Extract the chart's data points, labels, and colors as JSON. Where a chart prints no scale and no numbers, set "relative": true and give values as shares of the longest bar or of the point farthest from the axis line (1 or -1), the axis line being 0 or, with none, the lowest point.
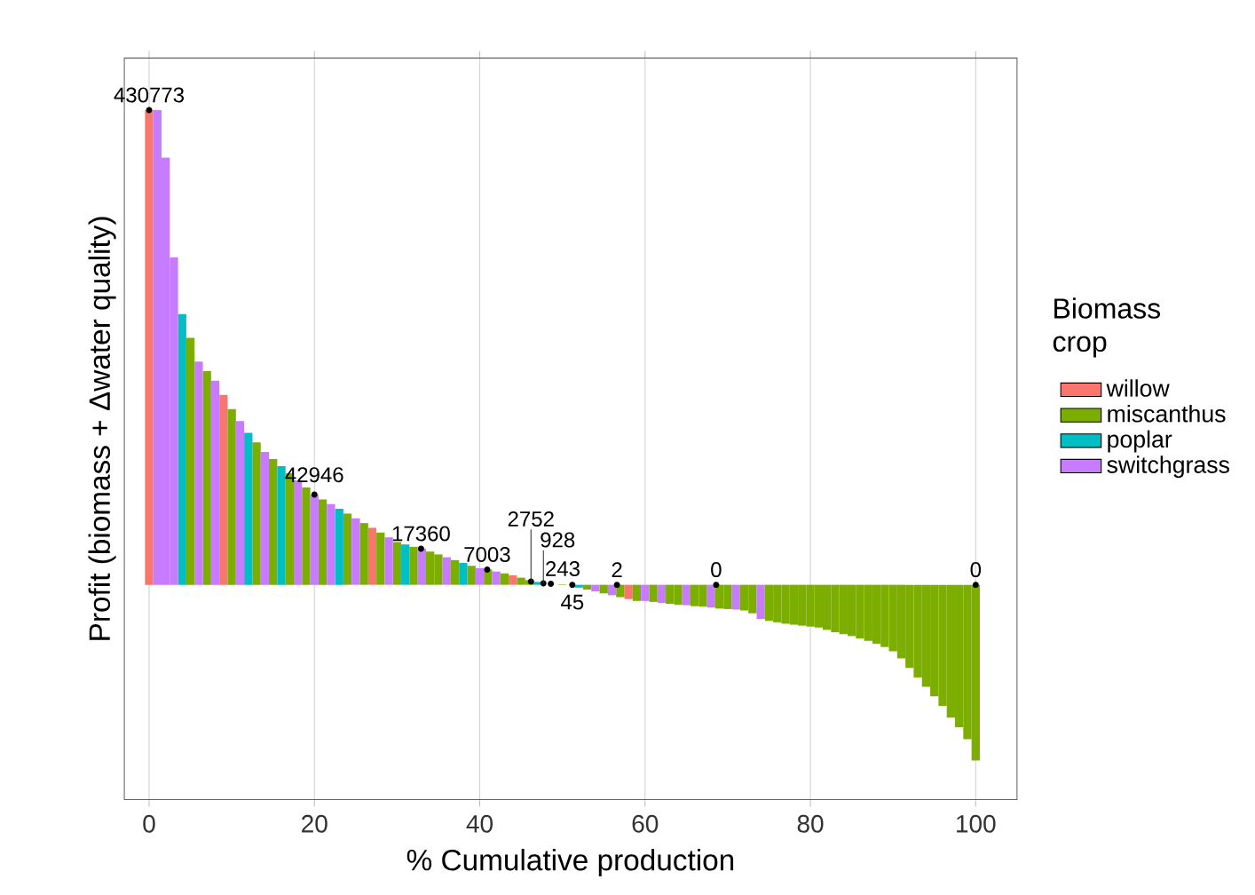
{
  "chart_data": {
    "type": "bar",
    "relative": true,
    "xlabel": "% Cumulative production",
    "ylabel": "Profit (biomass + Δwater quality)",
    "legend_title": "Biomass crop",
    "legend": "right",
    "grid": "x",
    "xlim": [
      -3,
      105
    ],
    "xticks": [
      0,
      20,
      40,
      60,
      80,
      100
    ],
    "series": [
      {
        "name": "willow",
        "color": "#f8766d",
        "x": [
          0,
          9,
          27,
          44,
          58
        ],
        "values": [
          1.0,
          0.4,
          0.12,
          0.02,
          -0.03
        ]
      },
      {
        "name": "miscanthus",
        "color": "#7cae00",
        "x": [
          5,
          7,
          10,
          13,
          15,
          17,
          19,
          21,
          24,
          26,
          28,
          30,
          32,
          34,
          35,
          37,
          39,
          41,
          43,
          45,
          46,
          48,
          50,
          51,
          53,
          55,
          57,
          59,
          61,
          63,
          64,
          66,
          67,
          69,
          70,
          72,
          73,
          75,
          76,
          77,
          78,
          79,
          80,
          81,
          82,
          83,
          84,
          85,
          86,
          87,
          88,
          89,
          90,
          91,
          92,
          93,
          94,
          95,
          96,
          97,
          98,
          99,
          100
        ],
        "values": [
          0.52,
          0.45,
          0.37,
          0.3,
          0.265,
          0.235,
          0.205,
          0.18,
          0.15,
          0.13,
          0.11,
          0.09,
          0.08,
          0.07,
          0.064,
          0.052,
          0.04,
          0.032,
          0.024,
          0.015,
          0.01,
          null,
          0.001,
          null,
          -0.01,
          -0.018,
          -0.026,
          -0.034,
          -0.036,
          -0.04,
          -0.042,
          -0.045,
          -0.046,
          -0.05,
          -0.051,
          -0.054,
          -0.06,
          -0.076,
          -0.079,
          -0.082,
          -0.084,
          -0.086,
          -0.088,
          -0.09,
          -0.095,
          -0.1,
          -0.104,
          -0.108,
          -0.113,
          -0.118,
          -0.124,
          -0.131,
          -0.14,
          -0.155,
          -0.175,
          -0.195,
          -0.215,
          -0.235,
          -0.255,
          -0.28,
          -0.3,
          -0.325,
          -0.37
        ]
      },
      {
        "name": "poplar",
        "color": "#00bfc4",
        "x": [
          4,
          12,
          16,
          23,
          31,
          38,
          47,
          52
        ],
        "values": [
          0.57,
          0.32,
          0.25,
          0.16,
          0.085,
          0.046,
          0.006,
          -0.006
        ]
      },
      {
        "name": "switchgrass",
        "color": "#c77cff",
        "x": [
          1,
          2,
          3,
          6,
          8,
          11,
          14,
          18,
          20,
          22,
          25,
          29,
          33,
          36,
          40,
          42,
          49,
          54,
          56,
          60,
          62,
          65,
          68,
          71,
          74
        ],
        "values": [
          1.0,
          0.9,
          0.69,
          0.47,
          0.43,
          0.345,
          0.28,
          0.22,
          0.19,
          0.17,
          0.14,
          0.1,
          0.076,
          0.058,
          0.035,
          0.028,
          null,
          -0.014,
          -0.022,
          -0.034,
          -0.038,
          -0.043,
          -0.048,
          -0.052,
          -0.072
        ]
      }
    ],
    "annotations": [
      {
        "text": "430773",
        "x": 0,
        "y": 1.0
      },
      {
        "text": "42946",
        "x": 20,
        "y": 0.19
      },
      {
        "text": "17360",
        "x": 32.9,
        "y": 0.076
      },
      {
        "text": "7003",
        "x": 40.9,
        "y": 0.032
      },
      {
        "text": "2752",
        "x": 46.2,
        "y": 0.007
      },
      {
        "text": "928",
        "x": 47.7,
        "y": 0.003
      },
      {
        "text": "243",
        "x": 48.6,
        "y": 0.002
      },
      {
        "text": "45",
        "x": 51.2,
        "y": 0
      },
      {
        "text": "2",
        "x": 56.6,
        "y": 0
      },
      {
        "text": "0",
        "x": 68.6,
        "y": 0
      },
      {
        "text": "0",
        "x": 100,
        "y": 0
      }
    ]
  }
}
